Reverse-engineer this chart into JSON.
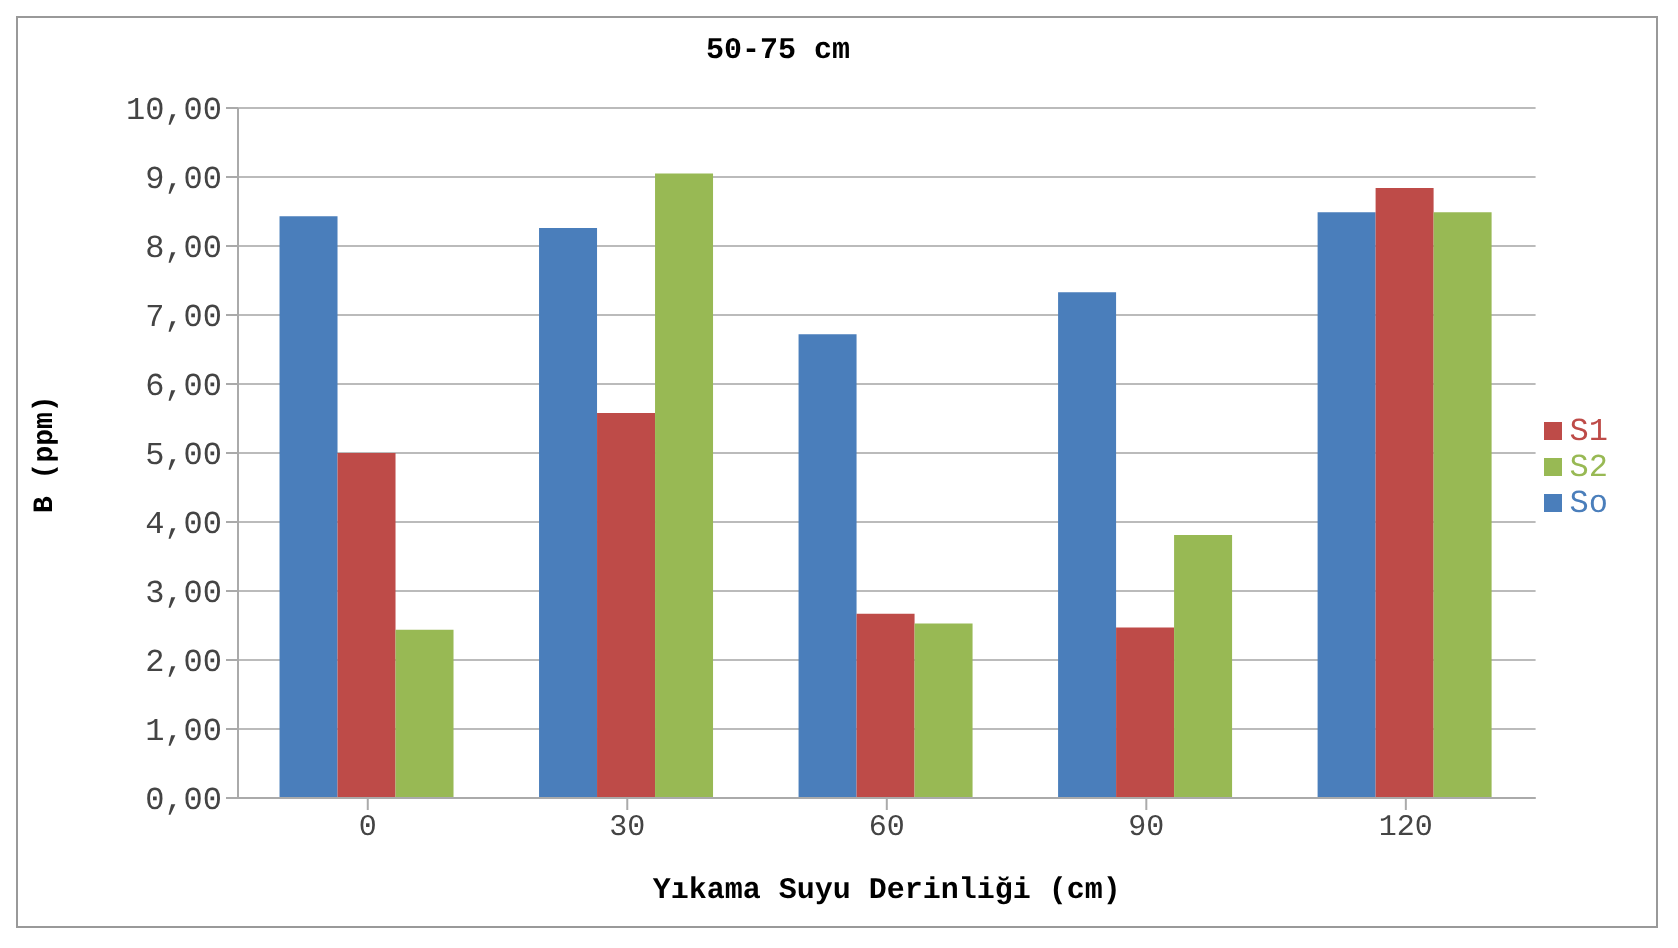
{
  "chart_data": {
    "type": "bar",
    "title": "50-75 cm",
    "xlabel": "Yıkama Suyu Derinliği (cm)",
    "ylabel": "B (ppm)",
    "categories": [
      "0",
      "30",
      "60",
      "90",
      "120"
    ],
    "series": [
      {
        "name": "So",
        "color": "#4a7ebb",
        "values": [
          8.43,
          8.26,
          6.72,
          7.33,
          8.49
        ]
      },
      {
        "name": "S1",
        "color": "#be4b48",
        "values": [
          5.0,
          5.58,
          2.67,
          2.47,
          8.84
        ]
      },
      {
        "name": "S2",
        "color": "#98b954",
        "values": [
          2.44,
          9.05,
          2.53,
          3.81,
          8.49
        ]
      }
    ],
    "ylim": [
      0,
      10
    ],
    "yticks": [
      {
        "value": 0,
        "label": "0,00"
      },
      {
        "value": 1,
        "label": "1,00"
      },
      {
        "value": 2,
        "label": "2,00"
      },
      {
        "value": 3,
        "label": "3,00"
      },
      {
        "value": 4,
        "label": "4,00"
      },
      {
        "value": 5,
        "label": "5,00"
      },
      {
        "value": 6,
        "label": "6,00"
      },
      {
        "value": 7,
        "label": "7,00"
      },
      {
        "value": 8,
        "label": "8,00"
      },
      {
        "value": 9,
        "label": "9,00"
      },
      {
        "value": 10,
        "label": "10,00"
      }
    ],
    "grid": "y",
    "legend": "right"
  }
}
